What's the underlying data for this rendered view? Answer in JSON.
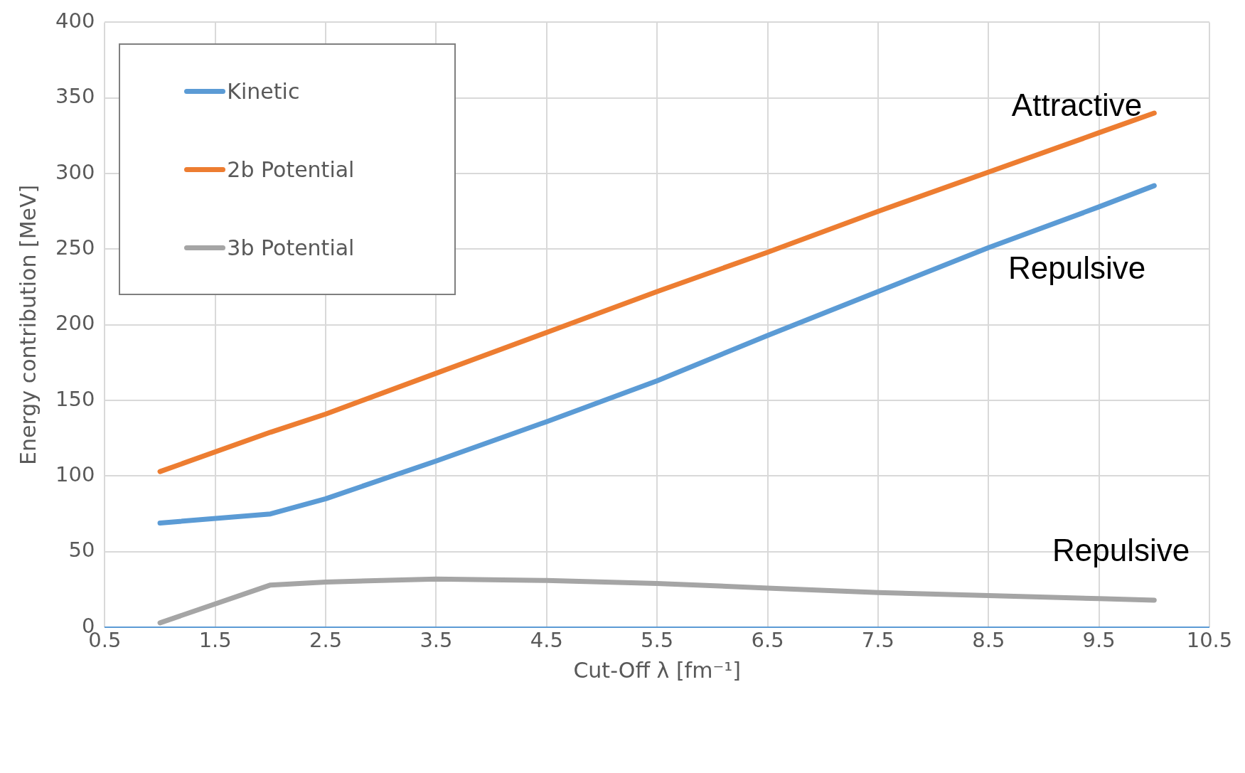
{
  "chart_data": {
    "type": "line",
    "xlabel": "Cut-Off λ [fm⁻¹]",
    "ylabel": "Energy contribution [MeV]",
    "x": [
      1,
      2,
      2.5,
      3.5,
      4.5,
      5.5,
      6.5,
      7.5,
      8.5,
      9.5,
      10
    ],
    "series": [
      {
        "name": "Kinetic",
        "color": "#5b9bd5",
        "values": [
          69,
          75,
          85,
          110,
          136,
          163,
          193,
          222,
          251,
          278,
          292
        ]
      },
      {
        "name": "2b Potential",
        "color": "#ed7d31",
        "values": [
          103,
          129,
          141,
          168,
          195,
          222,
          248,
          275,
          301,
          327,
          340
        ]
      },
      {
        "name": "3b Potential",
        "color": "#a5a5a5",
        "values": [
          3,
          28,
          30,
          32,
          31,
          29,
          26,
          23,
          21,
          19,
          18
        ]
      }
    ],
    "xlim": [
      0.5,
      10.5
    ],
    "xticks": [
      0.5,
      1.5,
      2.5,
      3.5,
      4.5,
      5.5,
      6.5,
      7.5,
      8.5,
      9.5,
      10.5
    ],
    "ylim": [
      0,
      400
    ],
    "yticks": [
      0,
      50,
      100,
      150,
      200,
      250,
      300,
      350,
      400
    ],
    "grid": true,
    "legend": "top left",
    "marker": "none",
    "line_style": "solid",
    "annotations": [
      "Attractive",
      "Repulsive",
      "Repulsive"
    ]
  }
}
